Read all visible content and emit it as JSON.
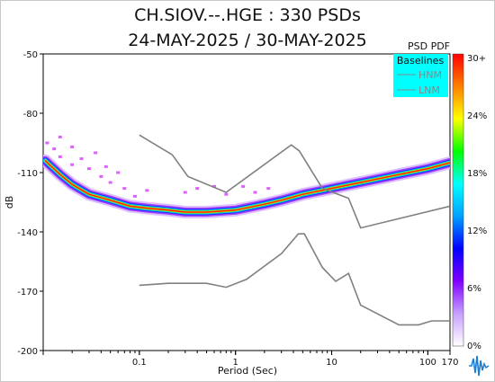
{
  "chart_data": {
    "type": "heatmap",
    "title": "CH.SIOV.--.HGE : 330 PSDs",
    "subtitle": "24-MAY-2025 / 30-MAY-2025",
    "xlabel": "Period (Sec)",
    "ylabel": "dB",
    "x_scale": "log",
    "xlim": [
      0.01,
      170
    ],
    "ylim": [
      -200,
      -50
    ],
    "x_ticks": [
      {
        "value": 0.1,
        "label": "0.1"
      },
      {
        "value": 1,
        "label": "1"
      },
      {
        "value": 10,
        "label": "10"
      },
      {
        "value": 100,
        "label": "100"
      },
      {
        "value": 170,
        "label": "170"
      }
    ],
    "y_ticks": [
      {
        "value": -50,
        "label": "-50"
      },
      {
        "value": -80,
        "label": "-80"
      },
      {
        "value": -110,
        "label": "-110"
      },
      {
        "value": -140,
        "label": "-140"
      },
      {
        "value": -170,
        "label": "-170"
      },
      {
        "value": -200,
        "label": "-200"
      }
    ],
    "colorbar": {
      "title": "PSD PDF",
      "labels": [
        "30+",
        "24%",
        "18%",
        "12%",
        "6%",
        "0%"
      ],
      "colors": [
        "#ffffff",
        "#c8a0ff",
        "#7f00ff",
        "#0000ff",
        "#00a0ff",
        "#00ffff",
        "#00ff00",
        "#ffff00",
        "#ff8000",
        "#ff0000"
      ]
    },
    "legend": {
      "title": "Baselines",
      "entries": [
        "HNM",
        "LNM"
      ],
      "placement": "top-right",
      "background": "#00ffff"
    },
    "baselines": [
      {
        "name": "HNM",
        "points": [
          [
            0.1,
            -91
          ],
          [
            0.22,
            -101
          ],
          [
            0.32,
            -112
          ],
          [
            0.8,
            -120
          ],
          [
            3.8,
            -96
          ],
          [
            4.6,
            -99
          ],
          [
            8,
            -118
          ],
          [
            15,
            -123
          ],
          [
            20,
            -138
          ],
          [
            170,
            -127
          ]
        ]
      },
      {
        "name": "LNM",
        "points": [
          [
            0.1,
            -167
          ],
          [
            0.2,
            -166
          ],
          [
            0.5,
            -166
          ],
          [
            0.8,
            -168
          ],
          [
            1.3,
            -164
          ],
          [
            3,
            -151
          ],
          [
            4.5,
            -141
          ],
          [
            5.2,
            -141
          ],
          [
            8,
            -158
          ],
          [
            11,
            -165
          ],
          [
            15,
            -161
          ],
          [
            20,
            -177
          ],
          [
            50,
            -187
          ],
          [
            80,
            -187
          ],
          [
            110,
            -185
          ],
          [
            170,
            -185
          ]
        ]
      }
    ],
    "density_mode": [
      [
        0.0105,
        -104
      ],
      [
        0.015,
        -111
      ],
      [
        0.02,
        -116
      ],
      [
        0.03,
        -121
      ],
      [
        0.05,
        -124
      ],
      [
        0.08,
        -127
      ],
      [
        0.12,
        -128
      ],
      [
        0.2,
        -129
      ],
      [
        0.3,
        -130
      ],
      [
        0.5,
        -130
      ],
      [
        1,
        -129
      ],
      [
        2,
        -126
      ],
      [
        3,
        -124
      ],
      [
        5,
        -121
      ],
      [
        10,
        -118
      ],
      [
        20,
        -115
      ],
      [
        50,
        -111
      ],
      [
        100,
        -108
      ],
      [
        170,
        -105
      ]
    ],
    "grid": false
  }
}
